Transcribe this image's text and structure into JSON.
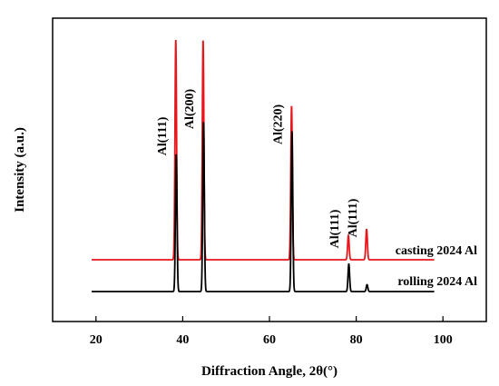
{
  "chart_data": {
    "type": "line",
    "xlabel": "Diffraction Angle, 2θ(°)",
    "ylabel": "Intensity (a.u.)",
    "xlim": [
      10,
      110
    ],
    "xticks": [
      "20",
      "40",
      "60",
      "80",
      "100"
    ],
    "y_ticks_labeled": false,
    "y_units": "arbitrary",
    "grid": false,
    "legend": "none",
    "colors": {
      "casting": "#e8151b",
      "rolling": "#000000"
    },
    "series": [
      {
        "name": "casting 2024 Al",
        "x_range": [
          19,
          98
        ],
        "baseline": 0,
        "peaks": [
          {
            "x": 38.4,
            "height": 100
          },
          {
            "x": 44.7,
            "height": 100
          },
          {
            "x": 65.1,
            "height": 70
          },
          {
            "x": 78.2,
            "height": 11
          },
          {
            "x": 82.4,
            "height": 14
          }
        ]
      },
      {
        "name": "rolling 2024 Al",
        "x_range": [
          19,
          98
        ],
        "baseline": 0,
        "peaks": [
          {
            "x": 38.5,
            "height": 60
          },
          {
            "x": 44.8,
            "height": 74
          },
          {
            "x": 65.2,
            "height": 70
          },
          {
            "x": 78.3,
            "height": 12
          },
          {
            "x": 82.5,
            "height": 3
          }
        ]
      }
    ],
    "annotations": [
      {
        "text": "Al(111)",
        "x": 38.4
      },
      {
        "text": "Al(200)",
        "x": 44.7
      },
      {
        "text": "Al(220)",
        "x": 65.1
      },
      {
        "text": "Al(111)",
        "x": 78.2
      },
      {
        "text": "Al(111)",
        "x": 82.4
      }
    ]
  }
}
